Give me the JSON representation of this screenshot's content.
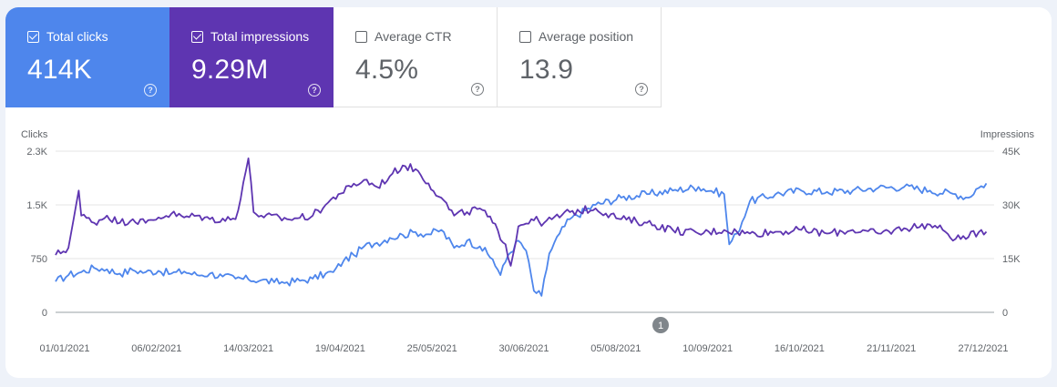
{
  "cards": {
    "clicks": {
      "label": "Total clicks",
      "value": "414K",
      "checked": true,
      "color": "#4e86ec"
    },
    "impressions": {
      "label": "Total impressions",
      "value": "9.29M",
      "checked": true,
      "color": "#5e35b1"
    },
    "ctr": {
      "label": "Average CTR",
      "value": "4.5%",
      "checked": false
    },
    "position": {
      "label": "Average position",
      "value": "13.9",
      "checked": false
    },
    "help_icon": "help-circle-icon"
  },
  "annotation_marker": "1",
  "chart_data": {
    "type": "line",
    "left_axis": {
      "title": "Clicks",
      "ticks": [
        "0",
        "750",
        "1.5K",
        "2.3K"
      ],
      "ylim": [
        0,
        2250
      ]
    },
    "right_axis": {
      "title": "Impressions",
      "ticks": [
        "0",
        "15K",
        "30K",
        "45K"
      ],
      "ylim": [
        0,
        45000
      ]
    },
    "x_ticks": [
      "01/01/2021",
      "06/02/2021",
      "14/03/2021",
      "19/04/2021",
      "25/05/2021",
      "30/06/2021",
      "05/08/2021",
      "10/09/2021",
      "16/10/2021",
      "21/11/2021",
      "27/12/2021"
    ],
    "x_range_days": [
      0,
      365
    ],
    "grid": true,
    "series": [
      {
        "axis": "left",
        "color": "#4e86ec",
        "points": [
          [
            0,
            430
          ],
          [
            5,
            520
          ],
          [
            10,
            560
          ],
          [
            15,
            620
          ],
          [
            20,
            600
          ],
          [
            25,
            540
          ],
          [
            30,
            590
          ],
          [
            35,
            560
          ],
          [
            40,
            580
          ],
          [
            45,
            540
          ],
          [
            50,
            570
          ],
          [
            55,
            520
          ],
          [
            60,
            540
          ],
          [
            65,
            500
          ],
          [
            70,
            470
          ],
          [
            75,
            460
          ],
          [
            80,
            450
          ],
          [
            85,
            420
          ],
          [
            90,
            420
          ],
          [
            95,
            440
          ],
          [
            100,
            470
          ],
          [
            105,
            540
          ],
          [
            108,
            560
          ],
          [
            112,
            720
          ],
          [
            116,
            800
          ],
          [
            120,
            920
          ],
          [
            125,
            970
          ],
          [
            130,
            1040
          ],
          [
            135,
            1080
          ],
          [
            140,
            1120
          ],
          [
            145,
            1090
          ],
          [
            150,
            1150
          ],
          [
            155,
            900
          ],
          [
            160,
            1000
          ],
          [
            165,
            920
          ],
          [
            170,
            740
          ],
          [
            173,
            520
          ],
          [
            176,
            800
          ],
          [
            180,
            1000
          ],
          [
            183,
            860
          ],
          [
            186,
            300
          ],
          [
            189,
            230
          ],
          [
            192,
            820
          ],
          [
            196,
            1100
          ],
          [
            200,
            1300
          ],
          [
            210,
            1500
          ],
          [
            220,
            1600
          ],
          [
            230,
            1650
          ],
          [
            240,
            1700
          ],
          [
            250,
            1750
          ],
          [
            260,
            1650
          ],
          [
            262,
            950
          ],
          [
            265,
            1100
          ],
          [
            270,
            1550
          ],
          [
            280,
            1650
          ],
          [
            290,
            1700
          ],
          [
            300,
            1680
          ],
          [
            310,
            1700
          ],
          [
            320,
            1740
          ],
          [
            330,
            1750
          ],
          [
            340,
            1700
          ],
          [
            350,
            1650
          ],
          [
            355,
            1600
          ],
          [
            358,
            1720
          ],
          [
            362,
            1800
          ]
        ]
      },
      {
        "axis": "right",
        "color": "#5e35b1",
        "points": [
          [
            0,
            16000
          ],
          [
            5,
            18000
          ],
          [
            7,
            26000
          ],
          [
            9,
            34000
          ],
          [
            10,
            27000
          ],
          [
            15,
            25000
          ],
          [
            20,
            27000
          ],
          [
            25,
            25000
          ],
          [
            30,
            26000
          ],
          [
            35,
            25000
          ],
          [
            40,
            26500
          ],
          [
            45,
            27500
          ],
          [
            50,
            26500
          ],
          [
            55,
            27000
          ],
          [
            60,
            26000
          ],
          [
            70,
            26000
          ],
          [
            75,
            43000
          ],
          [
            77,
            28000
          ],
          [
            80,
            27000
          ],
          [
            90,
            26000
          ],
          [
            100,
            27000
          ],
          [
            105,
            30000
          ],
          [
            110,
            33000
          ],
          [
            115,
            35000
          ],
          [
            120,
            37000
          ],
          [
            125,
            35000
          ],
          [
            130,
            38000
          ],
          [
            135,
            41000
          ],
          [
            140,
            40000
          ],
          [
            145,
            36000
          ],
          [
            150,
            32000
          ],
          [
            155,
            27000
          ],
          [
            160,
            28000
          ],
          [
            165,
            29000
          ],
          [
            170,
            25000
          ],
          [
            175,
            19000
          ],
          [
            177,
            13000
          ],
          [
            180,
            24000
          ],
          [
            185,
            26000
          ],
          [
            190,
            25000
          ],
          [
            200,
            28000
          ],
          [
            210,
            29000
          ],
          [
            220,
            26000
          ],
          [
            230,
            25000
          ],
          [
            240,
            23000
          ],
          [
            250,
            22000
          ],
          [
            260,
            23000
          ],
          [
            270,
            22000
          ],
          [
            280,
            22500
          ],
          [
            290,
            23000
          ],
          [
            300,
            22000
          ],
          [
            310,
            23000
          ],
          [
            320,
            22000
          ],
          [
            330,
            23500
          ],
          [
            340,
            24500
          ],
          [
            345,
            23000
          ],
          [
            350,
            20500
          ],
          [
            355,
            21000
          ],
          [
            360,
            23000
          ],
          [
            362,
            22500
          ]
        ]
      }
    ]
  }
}
